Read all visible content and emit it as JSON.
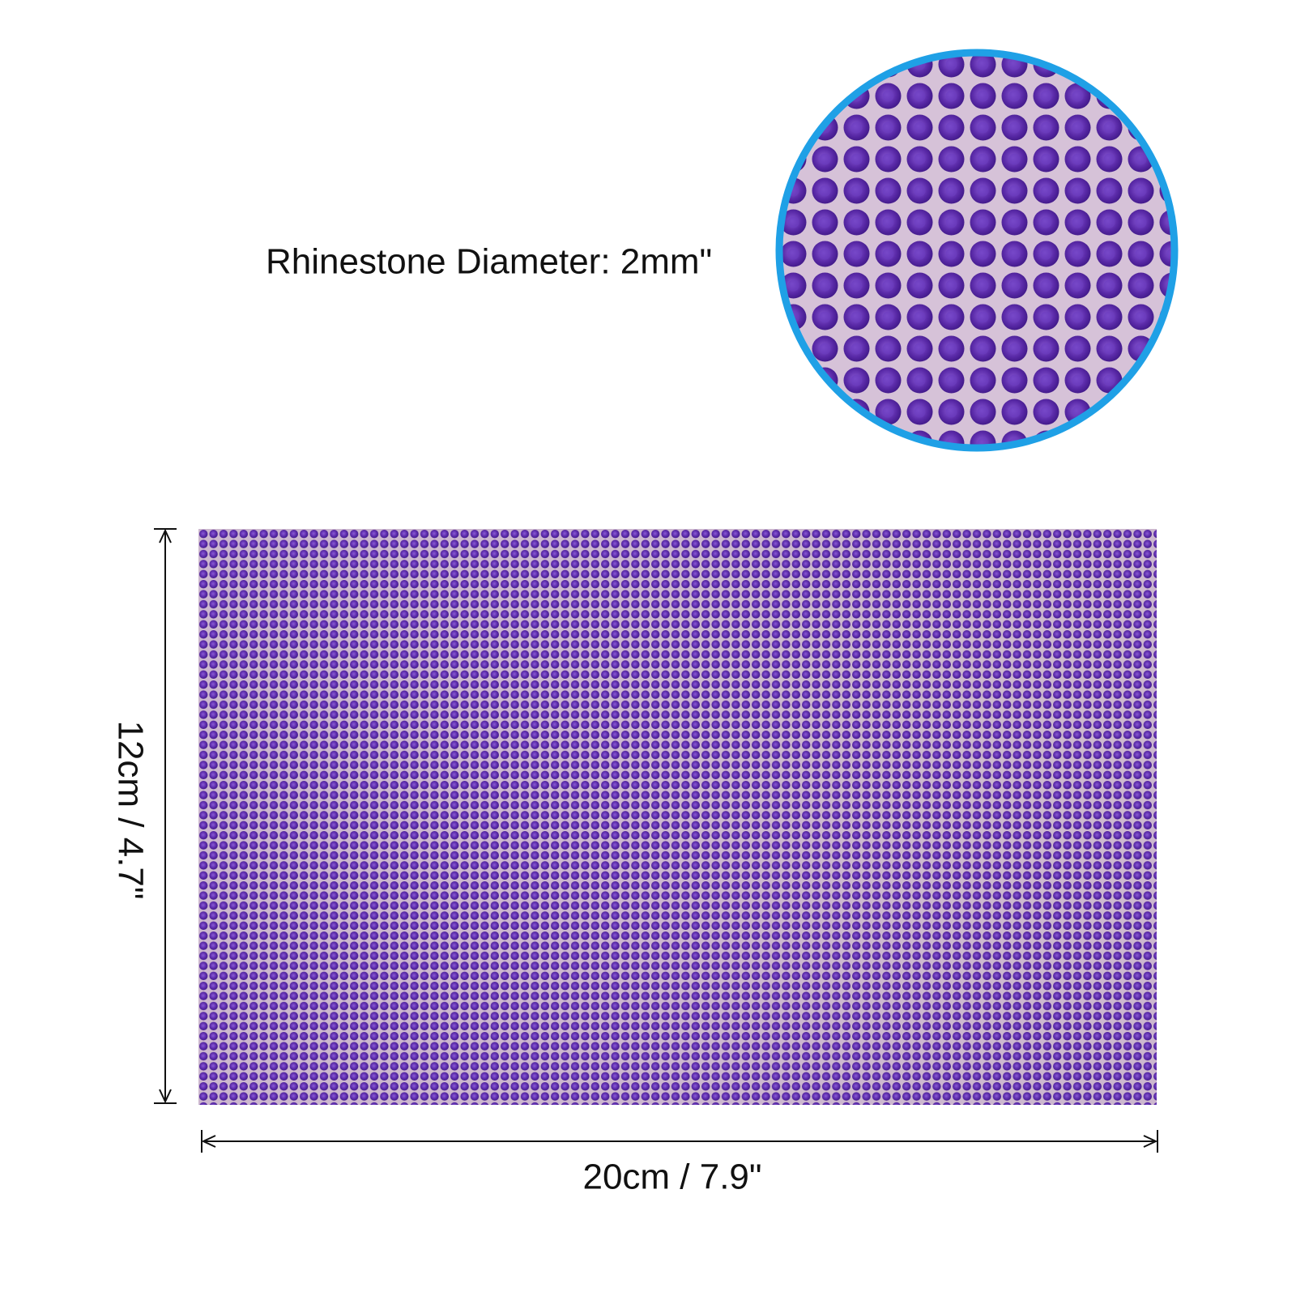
{
  "annotation": "Rhinestone Diameter: 2mm\"",
  "height_label": "12cm / 4.7\"",
  "width_label": "20cm / 7.9\""
}
